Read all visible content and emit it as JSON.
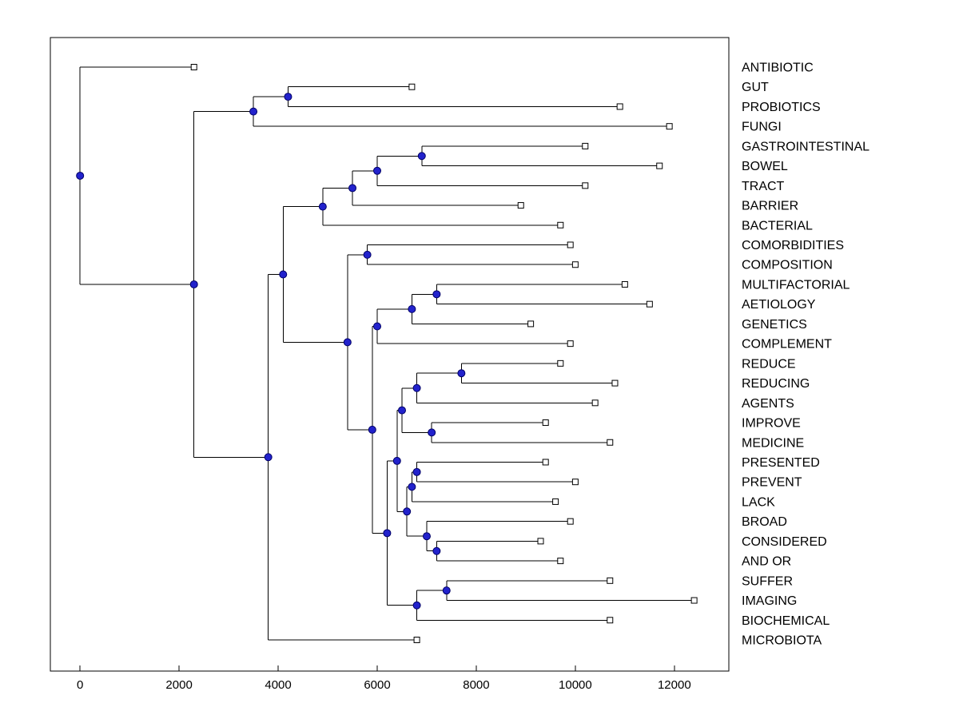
{
  "figure": {
    "background": "#ffffff",
    "plot_border_color": "#000000"
  },
  "chart_data": {
    "type": "dendrogram",
    "orientation": "horizontal",
    "title": "",
    "xlabel": "",
    "ylabel": "",
    "x_ticks": [
      "0",
      "2000",
      "4000",
      "6000",
      "8000",
      "10000",
      "12000"
    ],
    "x_tick_values": [
      0,
      2000,
      4000,
      6000,
      8000,
      10000,
      12000
    ],
    "xlim": [
      -600,
      13100
    ],
    "grid": false,
    "line_color": "#000000",
    "node_marker_fill": "#2222cc",
    "node_marker_edge": "#000066",
    "leaf_marker_fill": "#ffffff",
    "leaf_marker_edge": "#000000",
    "leaf_labels": [
      "ANTIBIOTIC",
      "GUT",
      "PROBIOTICS",
      "FUNGI",
      "GASTROINTESTINAL",
      "BOWEL",
      "TRACT",
      "BARRIER",
      "BACTERIAL",
      "COMORBIDITIES",
      "COMPOSITION",
      "MULTIFACTORIAL",
      "AETIOLOGY",
      "GENETICS",
      "COMPLEMENT",
      "REDUCE",
      "REDUCING",
      "AGENTS",
      "IMPROVE",
      "MEDICINE",
      "PRESENTED",
      "PREVENT",
      "LACK",
      "BROAD",
      "CONSIDERED",
      "AND OR",
      "SUFFER",
      "IMAGING",
      "BIOCHEMICAL",
      "MICROBIOTA"
    ],
    "leaf_tip_values": [
      2300,
      6700,
      10900,
      11900,
      10200,
      11700,
      10200,
      8900,
      9700,
      9900,
      10000,
      11000,
      11500,
      9100,
      9900,
      9700,
      10800,
      10400,
      9400,
      10700,
      9400,
      10000,
      9600,
      9900,
      9300,
      9700,
      10700,
      12400,
      10700,
      6800
    ],
    "tree": {
      "v": 0,
      "c": [
        {
          "leaf": 0
        },
        {
          "v": 2300,
          "c": [
            {
              "v": 3500,
              "c": [
                {
                  "v": 4200,
                  "c": [
                    {
                      "leaf": 1
                    },
                    {
                      "leaf": 2
                    }
                  ]
                },
                {
                  "leaf": 3
                }
              ]
            },
            {
              "v": 3800,
              "c": [
                {
                  "v": 4100,
                  "c": [
                    {
                      "v": 4900,
                      "c": [
                        {
                          "v": 5500,
                          "c": [
                            {
                              "v": 6000,
                              "c": [
                                {
                                  "v": 6900,
                                  "c": [
                                    {
                                      "leaf": 4
                                    },
                                    {
                                      "leaf": 5
                                    }
                                  ]
                                },
                                {
                                  "leaf": 6
                                }
                              ]
                            },
                            {
                              "leaf": 7
                            }
                          ]
                        },
                        {
                          "leaf": 8
                        }
                      ]
                    },
                    {
                      "v": 5400,
                      "c": [
                        {
                          "v": 5800,
                          "c": [
                            {
                              "leaf": 9
                            },
                            {
                              "leaf": 10
                            }
                          ]
                        },
                        {
                          "v": 5900,
                          "c": [
                            {
                              "v": 6000,
                              "c": [
                                {
                                  "v": 6700,
                                  "c": [
                                    {
                                      "v": 7200,
                                      "c": [
                                        {
                                          "leaf": 11
                                        },
                                        {
                                          "leaf": 12
                                        }
                                      ]
                                    },
                                    {
                                      "leaf": 13
                                    }
                                  ]
                                },
                                {
                                  "leaf": 14
                                }
                              ]
                            },
                            {
                              "v": 6200,
                              "c": [
                                {
                                  "v": 6400,
                                  "c": [
                                    {
                                      "v": 6500,
                                      "c": [
                                        {
                                          "v": 6800,
                                          "c": [
                                            {
                                              "v": 7700,
                                              "c": [
                                                {
                                                  "leaf": 15
                                                },
                                                {
                                                  "leaf": 16
                                                }
                                              ]
                                            },
                                            {
                                              "leaf": 17
                                            }
                                          ]
                                        },
                                        {
                                          "v": 7100,
                                          "c": [
                                            {
                                              "leaf": 18
                                            },
                                            {
                                              "leaf": 19
                                            }
                                          ]
                                        }
                                      ]
                                    },
                                    {
                                      "v": 6600,
                                      "c": [
                                        {
                                          "v": 6700,
                                          "c": [
                                            {
                                              "v": 6800,
                                              "c": [
                                                {
                                                  "leaf": 20
                                                },
                                                {
                                                  "leaf": 21
                                                }
                                              ]
                                            },
                                            {
                                              "leaf": 22
                                            }
                                          ]
                                        },
                                        {
                                          "v": 7000,
                                          "c": [
                                            {
                                              "leaf": 23
                                            },
                                            {
                                              "v": 7200,
                                              "c": [
                                                {
                                                  "leaf": 24
                                                },
                                                {
                                                  "leaf": 25
                                                }
                                              ]
                                            }
                                          ]
                                        }
                                      ]
                                    }
                                  ]
                                },
                                {
                                  "v": 6800,
                                  "c": [
                                    {
                                      "v": 7400,
                                      "c": [
                                        {
                                          "leaf": 26
                                        },
                                        {
                                          "leaf": 27
                                        }
                                      ]
                                    },
                                    {
                                      "leaf": 28
                                    }
                                  ]
                                }
                              ]
                            }
                          ]
                        }
                      ]
                    }
                  ]
                },
                {
                  "leaf": 29
                }
              ]
            }
          ]
        }
      ]
    }
  }
}
